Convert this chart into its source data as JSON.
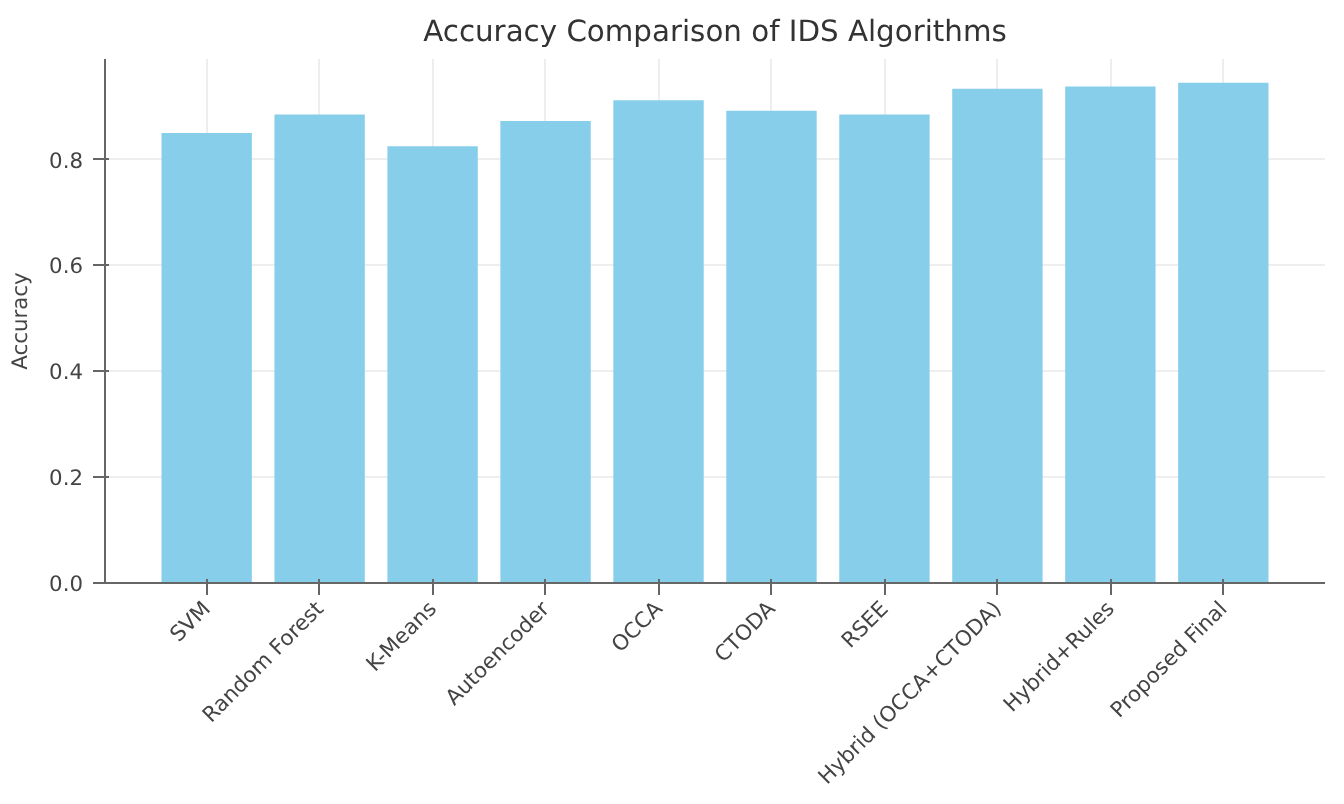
{
  "chart_data": {
    "type": "bar",
    "title": "Accuracy Comparison of IDS Algorithms",
    "ylabel": "Accuracy",
    "categories": [
      "SVM",
      "Random Forest",
      "K-Means",
      "Autoencoder",
      "OCCA",
      "CTODA",
      "RSEE",
      "Hybrid (OCCA+CTODA)",
      "Hybrid+Rules",
      "Proposed Final"
    ],
    "values": [
      0.85,
      0.885,
      0.825,
      0.873,
      0.912,
      0.892,
      0.885,
      0.934,
      0.938,
      0.945
    ],
    "color": "#87ceeb",
    "ylim": [
      0,
      0.99
    ],
    "yticks": [
      {
        "value": 0,
        "label": "0.0"
      },
      0.2,
      0.4,
      0.6,
      0.8
    ],
    "grid": true
  }
}
